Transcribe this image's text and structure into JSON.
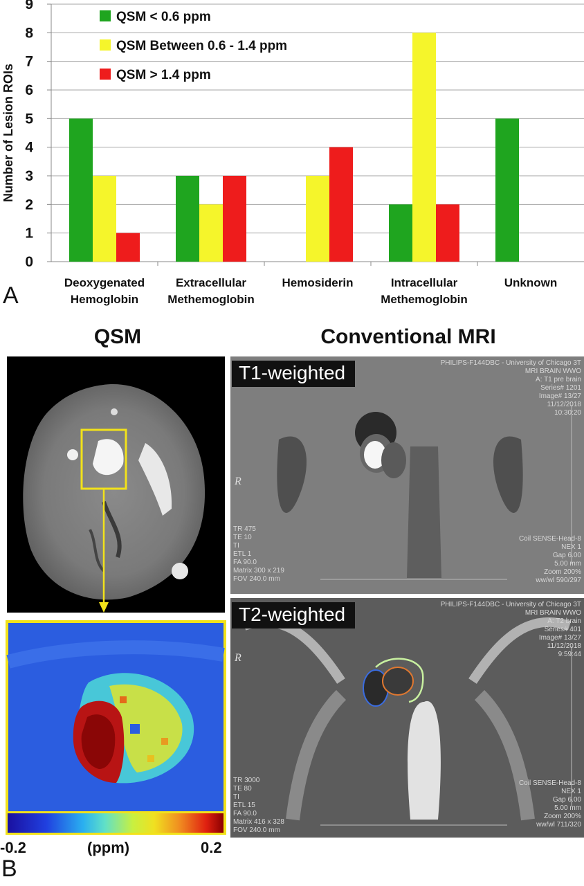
{
  "chart_data": {
    "type": "bar",
    "title": "",
    "ylabel": "Number of Lesion ROIs",
    "xlabel": "",
    "ylim": [
      0,
      9
    ],
    "yticks": [
      "0",
      "1",
      "2",
      "3",
      "4",
      "5",
      "6",
      "7",
      "8",
      "9"
    ],
    "grid": true,
    "legend_position": "top-left",
    "categories": [
      [
        "Deoxygenated",
        "Hemoglobin"
      ],
      [
        "Extracellular",
        "Methemoglobin"
      ],
      [
        "Hemosiderin"
      ],
      [
        "Intracellular",
        "Methemoglobin"
      ],
      [
        "Unknown"
      ]
    ],
    "series": [
      {
        "name": "QSM < 0.6 ppm",
        "color": "#1fa51f",
        "values": [
          5,
          3,
          0,
          2,
          5
        ]
      },
      {
        "name": "QSM Between 0.6 - 1.4 ppm",
        "color": "#f5f52b",
        "values": [
          3,
          2,
          3,
          8,
          0
        ]
      },
      {
        "name": "QSM > 1.4 ppm",
        "color": "#ee1c1c",
        "values": [
          1,
          3,
          4,
          2,
          0
        ]
      }
    ]
  },
  "panel_labels": {
    "a": "A",
    "b": "B"
  },
  "panel_b": {
    "qsm_title": "QSM",
    "mri_title": "Conventional MRI",
    "colorbar": {
      "min_label": "-0.2",
      "unit_label": "(ppm)",
      "max_label": "0.2"
    },
    "t1": {
      "label": "T1-weighted",
      "header": "PHILIPS-F144DBC - University of Chicago 3T\nMRI BRAIN WWO\nA: T1 pre brain\nSeries# 1201\nImage# 13/27\n11/12/2018\n10:30:20",
      "params_left": "TR 475\nTE 10\nTI\nETL 1\nFA 90.0\nMatrix 300 x 219\nFOV 240.0 mm",
      "params_right": "Coil SENSE-Head-8\nNEX 1\nGap 6.00\n5.00 mm\nZoom 200%\nww/wl 590/297",
      "orientation": "R"
    },
    "t2": {
      "label": "T2-weighted",
      "header": "PHILIPS-F144DBC - University of Chicago 3T\nMRI BRAIN WWO\nA: T2 brain\nSeries# 401\nImage# 13/27\n11/12/2018\n9:59:44",
      "params_left": "TR 3000\nTE 80\nTI\nETL 15\nFA 90.0\nMatrix 416 x 328\nFOV 240.0 mm",
      "params_right": "Coil SENSE-Head-8\nNEX 1\nGap 6.00\n5.00 mm\nZoom 200%\nww/wl 711/320",
      "orientation": "R"
    }
  }
}
